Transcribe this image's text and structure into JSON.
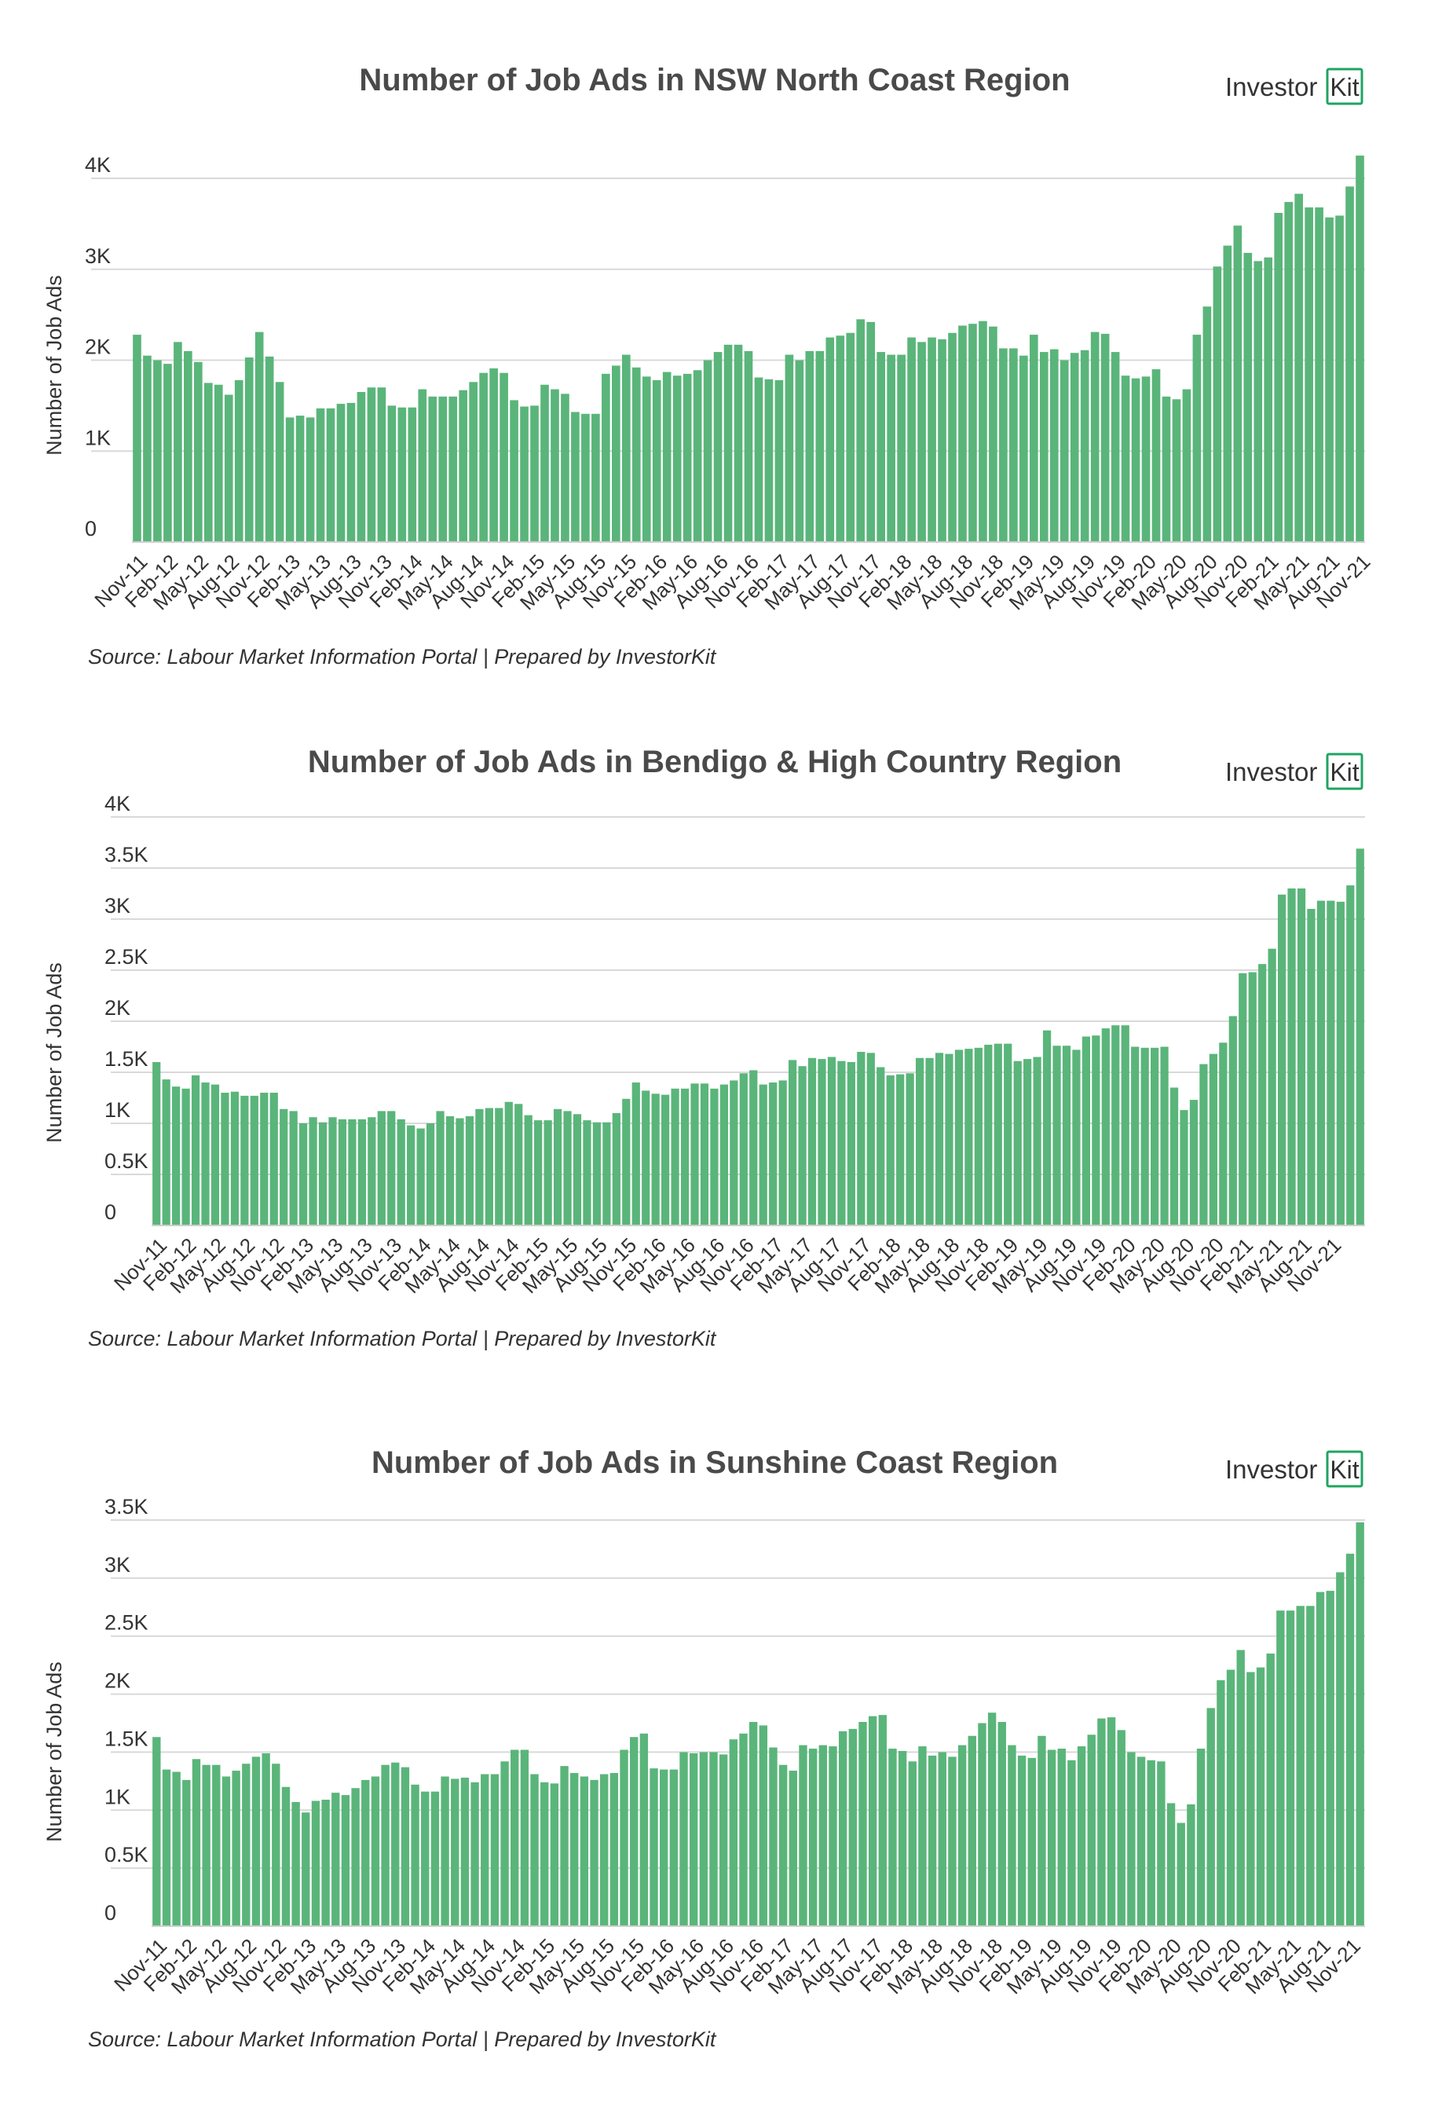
{
  "brand": {
    "logo_text": "Investor",
    "logo_badge": "Kit",
    "accent": "#1fa463",
    "bar_color": "#5ab57a"
  },
  "chart_data": [
    {
      "type": "bar",
      "title": "Number of Job Ads in NSW North Coast Region",
      "xlabel": "",
      "ylabel": "Number of Job Ads",
      "source": "Source: Labour Market Information Portal | Prepared by InvestorKit",
      "ylim": [
        0,
        4000
      ],
      "yticks": [
        "0",
        "1K",
        "2K",
        "3K",
        "4K"
      ],
      "xticks": [
        "Nov-11",
        "Feb-12",
        "May-12",
        "Aug-12",
        "Nov-12",
        "Feb-13",
        "May-13",
        "Aug-13",
        "Nov-13",
        "Feb-14",
        "May-14",
        "Aug-14",
        "Nov-14",
        "Feb-15",
        "May-15",
        "Aug-15",
        "Nov-15",
        "Feb-16",
        "May-16",
        "Aug-16",
        "Nov-16",
        "Feb-17",
        "May-17",
        "Aug-17",
        "Nov-17",
        "Feb-18",
        "May-18",
        "Aug-18",
        "Nov-18",
        "Feb-19",
        "May-19",
        "Aug-19",
        "Nov-19",
        "Feb-20",
        "May-20",
        "Aug-20",
        "Nov-20",
        "Feb-21",
        "May-21",
        "Aug-21",
        "Nov-21"
      ],
      "values": [
        2280,
        2050,
        2000,
        1960,
        2200,
        2100,
        1980,
        1750,
        1730,
        1620,
        1780,
        2030,
        2310,
        2040,
        1760,
        1370,
        1390,
        1370,
        1470,
        1470,
        1520,
        1530,
        1650,
        1700,
        1700,
        1500,
        1480,
        1480,
        1680,
        1600,
        1600,
        1600,
        1670,
        1760,
        1860,
        1910,
        1860,
        1560,
        1490,
        1500,
        1730,
        1680,
        1630,
        1430,
        1410,
        1410,
        1850,
        1940,
        2060,
        1920,
        1820,
        1780,
        1870,
        1830,
        1850,
        1890,
        2000,
        2090,
        2170,
        2170,
        2100,
        1810,
        1790,
        1780,
        2060,
        2000,
        2100,
        2100,
        2250,
        2270,
        2300,
        2450,
        2420,
        2090,
        2060,
        2060,
        2250,
        2200,
        2250,
        2230,
        2300,
        2380,
        2400,
        2430,
        2370,
        2130,
        2130,
        2050,
        2280,
        2090,
        2120,
        2000,
        2080,
        2110,
        2310,
        2290,
        2090,
        1830,
        1800,
        1820,
        1900,
        1600,
        1570,
        1680,
        2280,
        2590,
        3030,
        3260,
        3480,
        3180,
        3090,
        3130,
        3620,
        3740,
        3830,
        3680,
        3680,
        3570,
        3590,
        3910,
        4250
      ]
    },
    {
      "type": "bar",
      "title": "Number of Job Ads in Bendigo & High Country Region",
      "xlabel": "",
      "ylabel": "Number of Job Ads",
      "source": "Source: Labour Market Information Portal | Prepared by InvestorKit",
      "ylim": [
        0,
        4000
      ],
      "yticks": [
        "0",
        "0.5K",
        "1K",
        "1.5K",
        "2K",
        "2.5K",
        "3K",
        "3.5K",
        "4K"
      ],
      "xticks": [
        "Nov-11",
        "Feb-12",
        "May-12",
        "Aug-12",
        "Nov-12",
        "Feb-13",
        "May-13",
        "Aug-13",
        "Nov-13",
        "Feb-14",
        "May-14",
        "Aug-14",
        "Nov-14",
        "Feb-15",
        "May-15",
        "Aug-15",
        "Nov-15",
        "Feb-16",
        "May-16",
        "Aug-16",
        "Nov-16",
        "Feb-17",
        "May-17",
        "Aug-17",
        "Nov-17",
        "Feb-18",
        "May-18",
        "Aug-18",
        "Nov-18",
        "Feb-19",
        "May-19",
        "Aug-19",
        "Nov-19",
        "Feb-20",
        "May-20",
        "Aug-20",
        "Nov-20",
        "Feb-21",
        "May-21",
        "Aug-21",
        "Nov-21"
      ],
      "values": [
        1600,
        1430,
        1360,
        1340,
        1470,
        1400,
        1380,
        1300,
        1310,
        1270,
        1270,
        1300,
        1300,
        1140,
        1120,
        1000,
        1060,
        1010,
        1060,
        1040,
        1040,
        1040,
        1060,
        1120,
        1120,
        1040,
        980,
        950,
        1000,
        1120,
        1070,
        1050,
        1070,
        1140,
        1150,
        1150,
        1210,
        1190,
        1080,
        1030,
        1030,
        1140,
        1120,
        1090,
        1030,
        1010,
        1010,
        1100,
        1240,
        1400,
        1320,
        1290,
        1280,
        1340,
        1340,
        1390,
        1390,
        1340,
        1380,
        1420,
        1490,
        1520,
        1380,
        1400,
        1420,
        1620,
        1560,
        1640,
        1630,
        1650,
        1610,
        1600,
        1700,
        1690,
        1550,
        1470,
        1480,
        1490,
        1640,
        1640,
        1690,
        1680,
        1720,
        1730,
        1740,
        1770,
        1780,
        1780,
        1610,
        1630,
        1650,
        1910,
        1760,
        1760,
        1720,
        1850,
        1860,
        1930,
        1960,
        1960,
        1750,
        1740,
        1740,
        1750,
        1350,
        1130,
        1230,
        1580,
        1680,
        1790,
        2050,
        2470,
        2480,
        2560,
        2710,
        3240,
        3300,
        3300,
        3100,
        3180,
        3180,
        3170,
        3330,
        3690
      ]
    },
    {
      "type": "bar",
      "title": "Number of Job Ads in Sunshine Coast Region",
      "xlabel": "",
      "ylabel": "Number of Job Ads",
      "source": "Source: Labour Market Information Portal | Prepared by InvestorKit",
      "ylim": [
        0,
        3500
      ],
      "yticks": [
        "0",
        "0.5K",
        "1K",
        "1.5K",
        "2K",
        "2.5K",
        "3K",
        "3.5K"
      ],
      "xticks": [
        "Nov-11",
        "Feb-12",
        "May-12",
        "Aug-12",
        "Nov-12",
        "Feb-13",
        "May-13",
        "Aug-13",
        "Nov-13",
        "Feb-14",
        "May-14",
        "Aug-14",
        "Nov-14",
        "Feb-15",
        "May-15",
        "Aug-15",
        "Nov-15",
        "Feb-16",
        "May-16",
        "Aug-16",
        "Nov-16",
        "Feb-17",
        "May-17",
        "Aug-17",
        "Nov-17",
        "Feb-18",
        "May-18",
        "Aug-18",
        "Nov-18",
        "Feb-19",
        "May-19",
        "Aug-19",
        "Nov-19",
        "Feb-20",
        "May-20",
        "Aug-20",
        "Nov-20",
        "Feb-21",
        "May-21",
        "Aug-21",
        "Nov-21"
      ],
      "values": [
        1630,
        1350,
        1330,
        1260,
        1440,
        1390,
        1390,
        1290,
        1340,
        1400,
        1460,
        1490,
        1400,
        1200,
        1070,
        980,
        1080,
        1090,
        1150,
        1130,
        1190,
        1260,
        1290,
        1390,
        1410,
        1370,
        1220,
        1160,
        1160,
        1290,
        1270,
        1280,
        1240,
        1310,
        1310,
        1420,
        1520,
        1520,
        1310,
        1240,
        1230,
        1380,
        1320,
        1290,
        1260,
        1310,
        1320,
        1520,
        1630,
        1660,
        1360,
        1350,
        1350,
        1500,
        1490,
        1500,
        1500,
        1480,
        1610,
        1660,
        1760,
        1730,
        1540,
        1390,
        1340,
        1560,
        1530,
        1560,
        1550,
        1680,
        1700,
        1760,
        1810,
        1820,
        1530,
        1510,
        1420,
        1550,
        1470,
        1500,
        1460,
        1560,
        1640,
        1750,
        1840,
        1760,
        1560,
        1470,
        1450,
        1640,
        1520,
        1530,
        1430,
        1550,
        1650,
        1790,
        1800,
        1690,
        1500,
        1460,
        1430,
        1420,
        1060,
        890,
        1050,
        1530,
        1880,
        2120,
        2210,
        2380,
        2190,
        2230,
        2350,
        2720,
        2720,
        2760,
        2760,
        2880,
        2890,
        3050,
        3210,
        3480
      ]
    }
  ]
}
